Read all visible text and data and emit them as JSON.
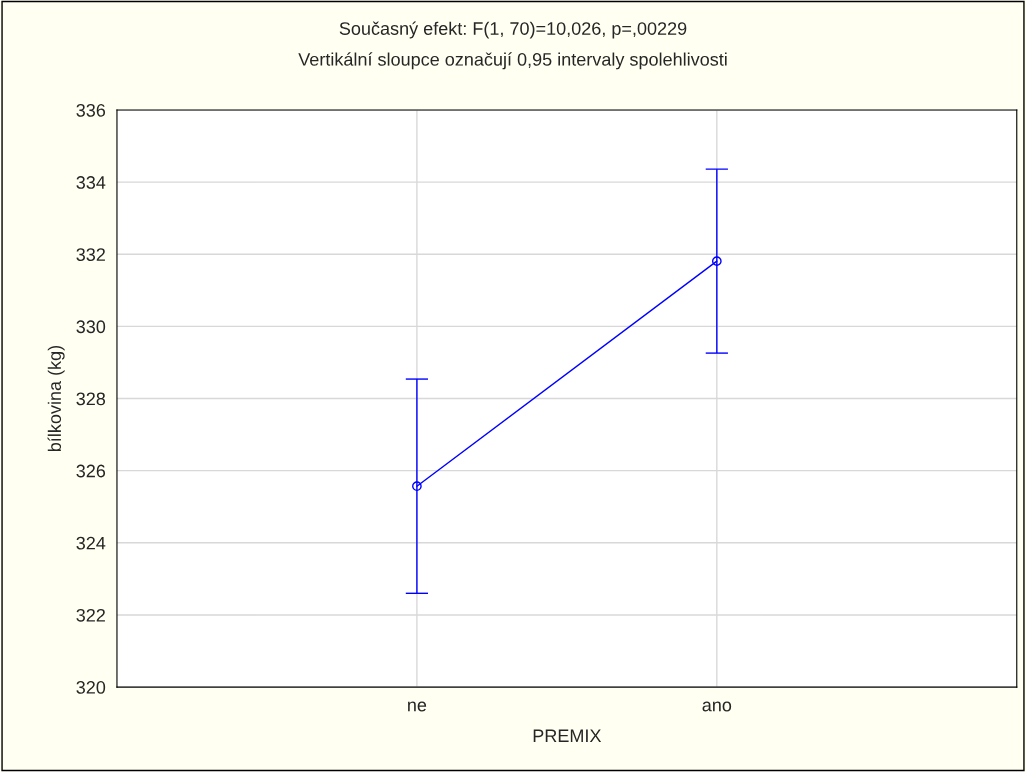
{
  "chart_data": {
    "type": "line",
    "title": "Současný efekt: F(1, 70)=10,026, p=,00229",
    "subtitle": "Vertikální sloupce označují 0,95 intervaly spolehlivosti",
    "xlabel": "PREMIX",
    "ylabel": "bílkovina (kg)",
    "categories": [
      "ne",
      "ano"
    ],
    "series": [
      {
        "color": "#0000ff",
        "values": [
          325.57,
          331.81
        ],
        "errors": [
          2.97,
          2.55
        ]
      }
    ],
    "ylim": [
      320,
      336
    ],
    "yticks": [
      320,
      322,
      324,
      326,
      328,
      330,
      332,
      334,
      336
    ],
    "grid": true,
    "marker": "circle",
    "line_style": "solid"
  }
}
